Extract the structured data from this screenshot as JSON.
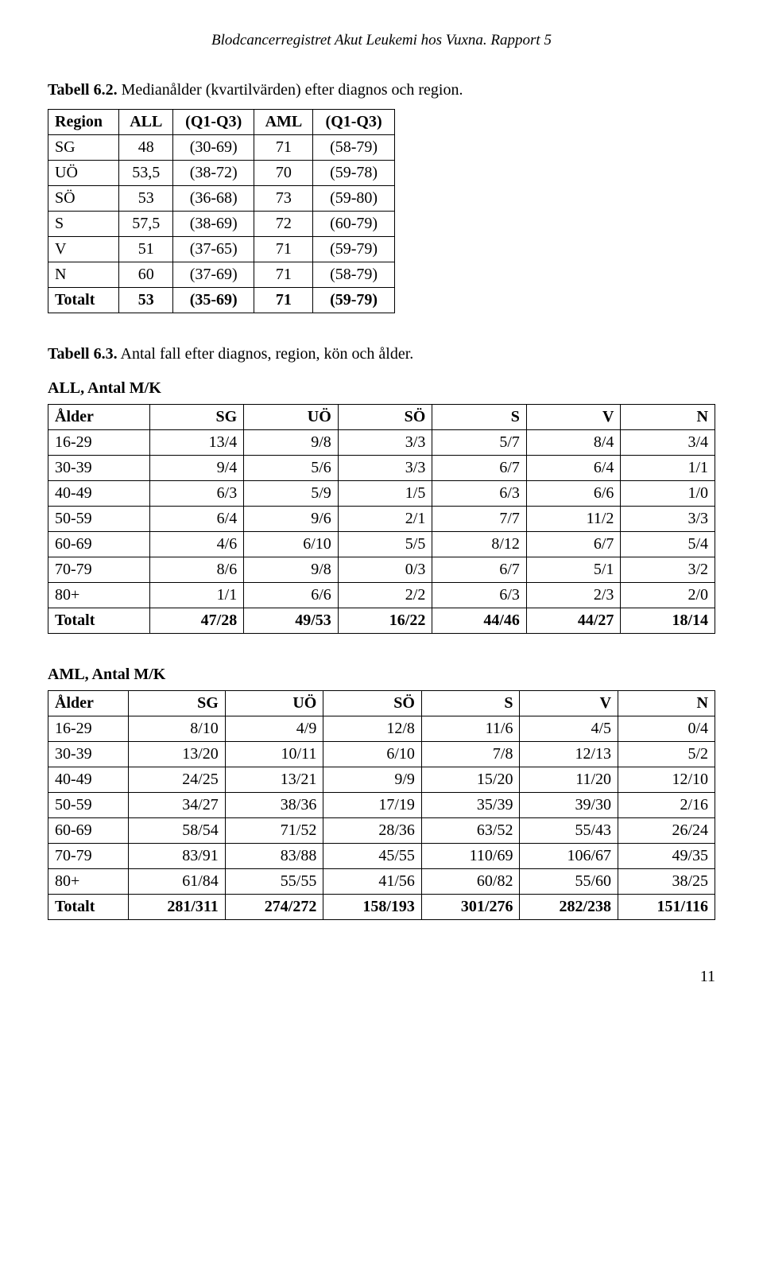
{
  "header": "Blodcancerregistret Akut Leukemi hos Vuxna. Rapport 5",
  "table62": {
    "caption_label": "Tabell 6.2.",
    "caption_text": " Medianålder (kvartilvärden) efter diagnos och region.",
    "cols": [
      "Region",
      "ALL",
      "(Q1-Q3)",
      "AML",
      "(Q1-Q3)"
    ],
    "rows": [
      [
        "SG",
        "48",
        "(30-69)",
        "71",
        "(58-79)"
      ],
      [
        "UÖ",
        "53,5",
        "(38-72)",
        "70",
        "(59-78)"
      ],
      [
        "SÖ",
        "53",
        "(36-68)",
        "73",
        "(59-80)"
      ],
      [
        "S",
        "57,5",
        "(38-69)",
        "72",
        "(60-79)"
      ],
      [
        "V",
        "51",
        "(37-65)",
        "71",
        "(59-79)"
      ],
      [
        "N",
        "60",
        "(37-69)",
        "71",
        "(58-79)"
      ],
      [
        "Totalt",
        "53",
        "(35-69)",
        "71",
        "(59-79)"
      ]
    ]
  },
  "table63": {
    "caption_label": "Tabell 6.3.",
    "caption_text": " Antal fall efter diagnos, region, kön och ålder.",
    "all": {
      "title": "ALL, Antal M/K",
      "cols": [
        "Ålder",
        "SG",
        "UÖ",
        "SÖ",
        "S",
        "V",
        "N"
      ],
      "rows": [
        [
          "16-29",
          "13/4",
          "9/8",
          "3/3",
          "5/7",
          "8/4",
          "3/4"
        ],
        [
          "30-39",
          "9/4",
          "5/6",
          "3/3",
          "6/7",
          "6/4",
          "1/1"
        ],
        [
          "40-49",
          "6/3",
          "5/9",
          "1/5",
          "6/3",
          "6/6",
          "1/0"
        ],
        [
          "50-59",
          "6/4",
          "9/6",
          "2/1",
          "7/7",
          "11/2",
          "3/3"
        ],
        [
          "60-69",
          "4/6",
          "6/10",
          "5/5",
          "8/12",
          "6/7",
          "5/4"
        ],
        [
          "70-79",
          "8/6",
          "9/8",
          "0/3",
          "6/7",
          "5/1",
          "3/2"
        ],
        [
          "80+",
          "1/1",
          "6/6",
          "2/2",
          "6/3",
          "2/3",
          "2/0"
        ],
        [
          "Totalt",
          "47/28",
          "49/53",
          "16/22",
          "44/46",
          "44/27",
          "18/14"
        ]
      ]
    },
    "aml": {
      "title": "AML, Antal M/K",
      "cols": [
        "Ålder",
        "SG",
        "UÖ",
        "SÖ",
        "S",
        "V",
        "N"
      ],
      "rows": [
        [
          "16-29",
          "8/10",
          "4/9",
          "12/8",
          "11/6",
          "4/5",
          "0/4"
        ],
        [
          "30-39",
          "13/20",
          "10/11",
          "6/10",
          "7/8",
          "12/13",
          "5/2"
        ],
        [
          "40-49",
          "24/25",
          "13/21",
          "9/9",
          "15/20",
          "11/20",
          "12/10"
        ],
        [
          "50-59",
          "34/27",
          "38/36",
          "17/19",
          "35/39",
          "39/30",
          "2/16"
        ],
        [
          "60-69",
          "58/54",
          "71/52",
          "28/36",
          "63/52",
          "55/43",
          "26/24"
        ],
        [
          "70-79",
          "83/91",
          "83/88",
          "45/55",
          "110/69",
          "106/67",
          "49/35"
        ],
        [
          "80+",
          "61/84",
          "55/55",
          "41/56",
          "60/82",
          "55/60",
          "38/25"
        ],
        [
          "Totalt",
          "281/311",
          "274/272",
          "158/193",
          "301/276",
          "282/238",
          "151/116"
        ]
      ]
    }
  },
  "page_number": "11"
}
